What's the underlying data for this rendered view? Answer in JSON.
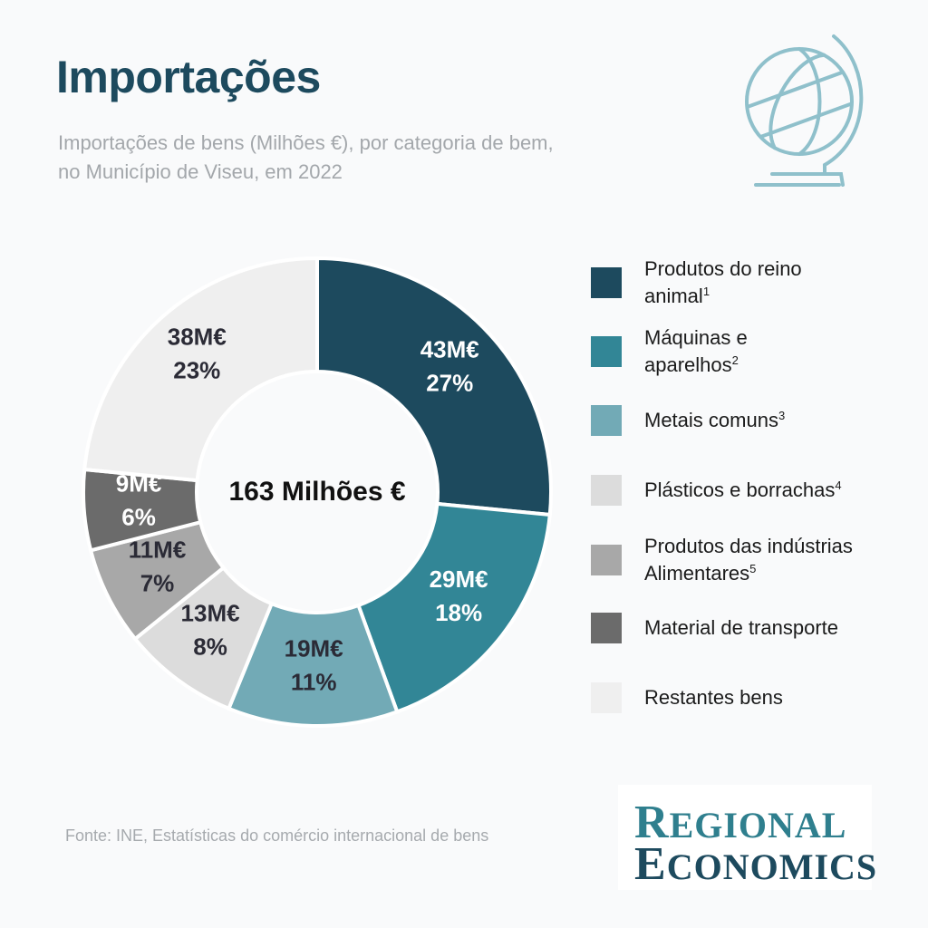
{
  "header": {
    "title": "Importações",
    "subtitle_line1": "Importações de bens (Milhões €), por categoria de bem,",
    "subtitle_line2": "no Município de Viseu, em 2022"
  },
  "center_label": "163 Milhões €",
  "source": "Fonte: INE, Estatísticas do comércio internacional de bens",
  "logo": {
    "line1_cap": "R",
    "line1_rest": "EGIONAL",
    "line2_cap": "E",
    "line2_rest": "CONOMICS"
  },
  "icons": {
    "globe": "globe-icon"
  },
  "chart_data": {
    "type": "pie",
    "style": "donut",
    "total_label": "163 Milhões €",
    "slices": [
      {
        "label": "Produtos do reino animal",
        "footnote": "1",
        "value": 43,
        "value_label": "43M€",
        "percent_label": "27%",
        "color": "#1d4a5e",
        "text_color": "#ffffff"
      },
      {
        "label": "Máquinas e aparelhos",
        "footnote": "2",
        "value": 29,
        "value_label": "29M€",
        "percent_label": "18%",
        "color": "#328696",
        "text_color": "#ffffff"
      },
      {
        "label": "Metais comuns",
        "footnote": "3",
        "value": 19,
        "value_label": "19M€",
        "percent_label": "11%",
        "color": "#72aab6",
        "text_color": "#2b2b36"
      },
      {
        "label": "Plásticos e borrachas",
        "footnote": "4",
        "value": 13,
        "value_label": "13M€",
        "percent_label": "8%",
        "color": "#dcdcdc",
        "text_color": "#2b2b36"
      },
      {
        "label": "Produtos das indústrias Alimentares",
        "footnote": "5",
        "value": 11,
        "value_label": "11M€",
        "percent_label": "7%",
        "color": "#a8a8a8",
        "text_color": "#2b2b36"
      },
      {
        "label": "Material de transporte",
        "footnote": "",
        "value": 9,
        "value_label": "9M€",
        "percent_label": "6%",
        "color": "#6b6b6b",
        "text_color": "#ffffff"
      },
      {
        "label": "Restantes bens",
        "footnote": "",
        "value": 38,
        "value_label": "38M€",
        "percent_label": "23%",
        "color": "#efefef",
        "text_color": "#2b2b36"
      }
    ],
    "legend": {
      "position": "right",
      "items": [
        {
          "line1": "Produtos do reino",
          "line2": "animal",
          "sup": "1"
        },
        {
          "line1": "Máquinas e",
          "line2": "aparelhos",
          "sup": "2"
        },
        {
          "line1": "Metais comuns",
          "line2": "",
          "sup": "3"
        },
        {
          "line1": "Plásticos e borrachas",
          "line2": "",
          "sup": "4"
        },
        {
          "line1": "Produtos das indústrias",
          "line2": "Alimentares",
          "sup": "5"
        },
        {
          "line1": "Material de transporte",
          "line2": "",
          "sup": ""
        },
        {
          "line1": "Restantes bens",
          "line2": "",
          "sup": ""
        }
      ]
    }
  }
}
